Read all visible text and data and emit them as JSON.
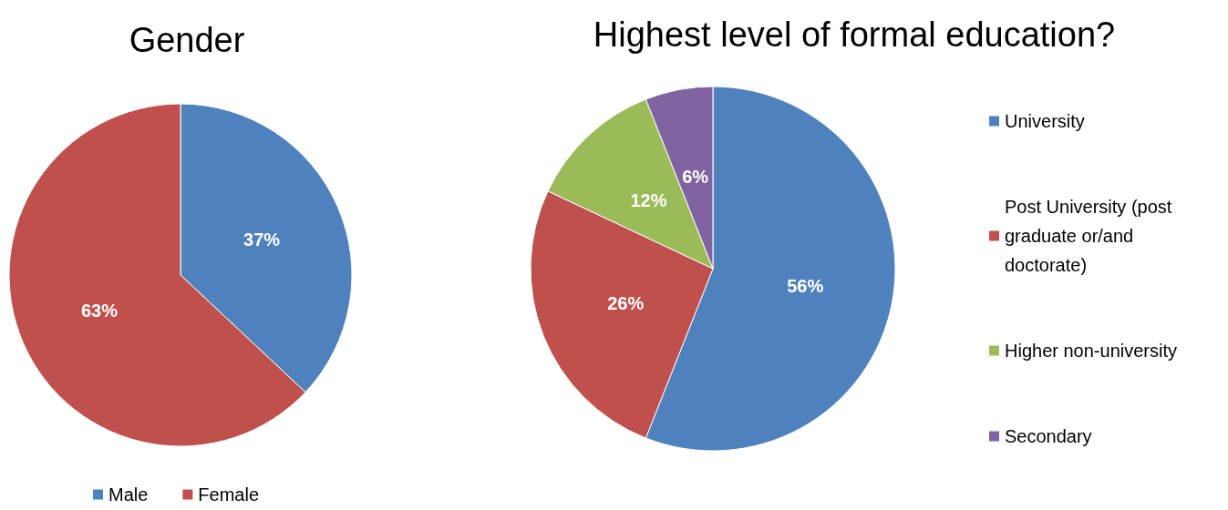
{
  "chart_data": [
    {
      "type": "pie",
      "title": "Gender",
      "categories": [
        "Male",
        "Female"
      ],
      "values": [
        37,
        63
      ],
      "colors": [
        "#4f81bd",
        "#c0504d"
      ],
      "value_labels": [
        "37%",
        "63%"
      ],
      "legend": "bottom"
    },
    {
      "type": "pie",
      "title": "Highest level of formal education?",
      "categories": [
        "University",
        "Post University (post graduate or/and doctorate)",
        "Higher non-university",
        "Secondary"
      ],
      "values": [
        56,
        26,
        12,
        6
      ],
      "colors": [
        "#4f81bd",
        "#c0504d",
        "#9bbb59",
        "#8064a2"
      ],
      "value_labels": [
        "56%",
        "26%",
        "12%",
        "6%"
      ],
      "legend": "right"
    }
  ]
}
